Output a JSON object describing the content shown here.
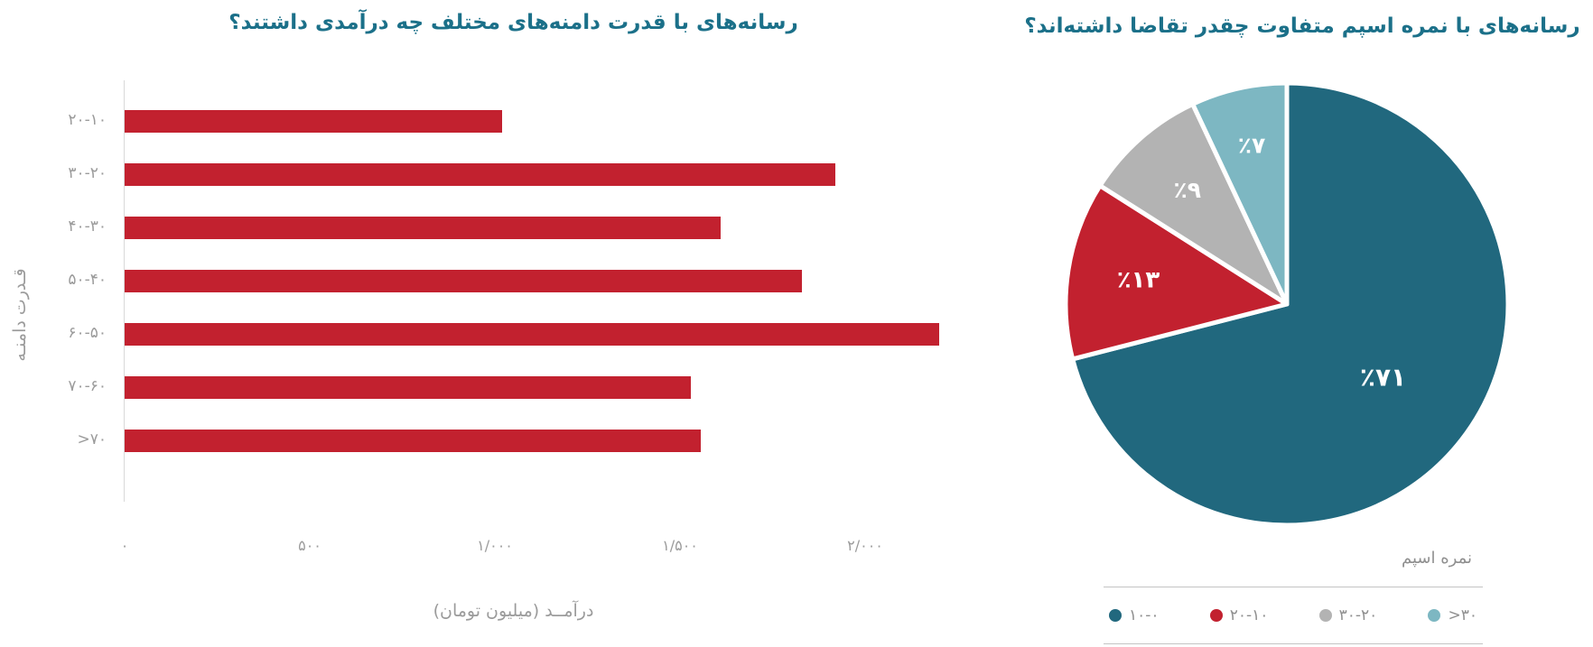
{
  "colors": {
    "title_teal": "#1b7089",
    "bar_red": "#c2212f",
    "pie_teal": "#21687e",
    "pie_red": "#c2212f",
    "pie_gray": "#b3b3b3",
    "pie_light_teal": "#7db7c2",
    "axis_text": "#9b9b9b",
    "axis_line": "#d9d9d9",
    "pie_label_white": "#ffffff"
  },
  "bar_chart": {
    "title": "رسانه‌های با قدرت دامنه‌های مختلف چه درآمدی داشتند؟",
    "ylabel": "قـدرت دامنـه",
    "xlabel": "درآمــد (میلیون تومان)"
  },
  "pie_chart": {
    "title": "رسانه‌های با نمره اسپم متفاوت چقدر تقاضا داشته‌اند؟",
    "legend_title": "نمره اسپم"
  },
  "chart_data": [
    {
      "type": "bar",
      "orientation": "horizontal",
      "title": "رسانه‌های با قدرت دامنه‌های مختلف چه درآمدی داشتند؟",
      "ylabel": "قدرت دامنه",
      "xlabel": "درآمد (میلیون تومان)",
      "categories": [
        "۲۰-۱۰",
        "۳۰-۲۰",
        "۴۰-۳۰",
        "۵۰-۴۰",
        "۶۰-۵۰",
        "۷۰-۶۰",
        ">۷۰"
      ],
      "categories_latin": [
        "10-20",
        "20-30",
        "30-40",
        "40-50",
        "50-60",
        "60-70",
        ">70"
      ],
      "values": [
        1020,
        1920,
        1610,
        1830,
        2200,
        1530,
        1555
      ],
      "xlim": [
        0,
        2200
      ],
      "x_ticks": [
        {
          "value": 0,
          "label": "۰"
        },
        {
          "value": 500,
          "label": "۵۰۰"
        },
        {
          "value": 1000,
          "label": "۱/۰۰۰"
        },
        {
          "value": 1500,
          "label": "۱/۵۰۰"
        },
        {
          "value": 2000,
          "label": "۲/۰۰۰"
        }
      ],
      "bar_color": "#c2212f",
      "grid": false
    },
    {
      "type": "pie",
      "title": "رسانه‌های با نمره اسپم متفاوت چقدر تقاضا داشته‌اند؟",
      "legend_title": "نمره اسپم",
      "legend_position": "bottom",
      "start_angle_deg_from_12_clockwise": 0,
      "slices": [
        {
          "label": "۱۰-۰",
          "label_latin": "0-10",
          "value": 71,
          "pct_label": "٪۷۱",
          "color": "#21687e"
        },
        {
          "label": "۲۰-۱۰",
          "label_latin": "10-20",
          "value": 13,
          "pct_label": "٪۱۳",
          "color": "#c2212f"
        },
        {
          "label": "۳۰-۲۰",
          "label_latin": "20-30",
          "value": 9,
          "pct_label": "٪۹",
          "color": "#b3b3b3"
        },
        {
          "label": ">۳۰",
          "label_latin": ">30",
          "value": 7,
          "pct_label": "٪۷",
          "color": "#7db7c2"
        }
      ]
    }
  ]
}
